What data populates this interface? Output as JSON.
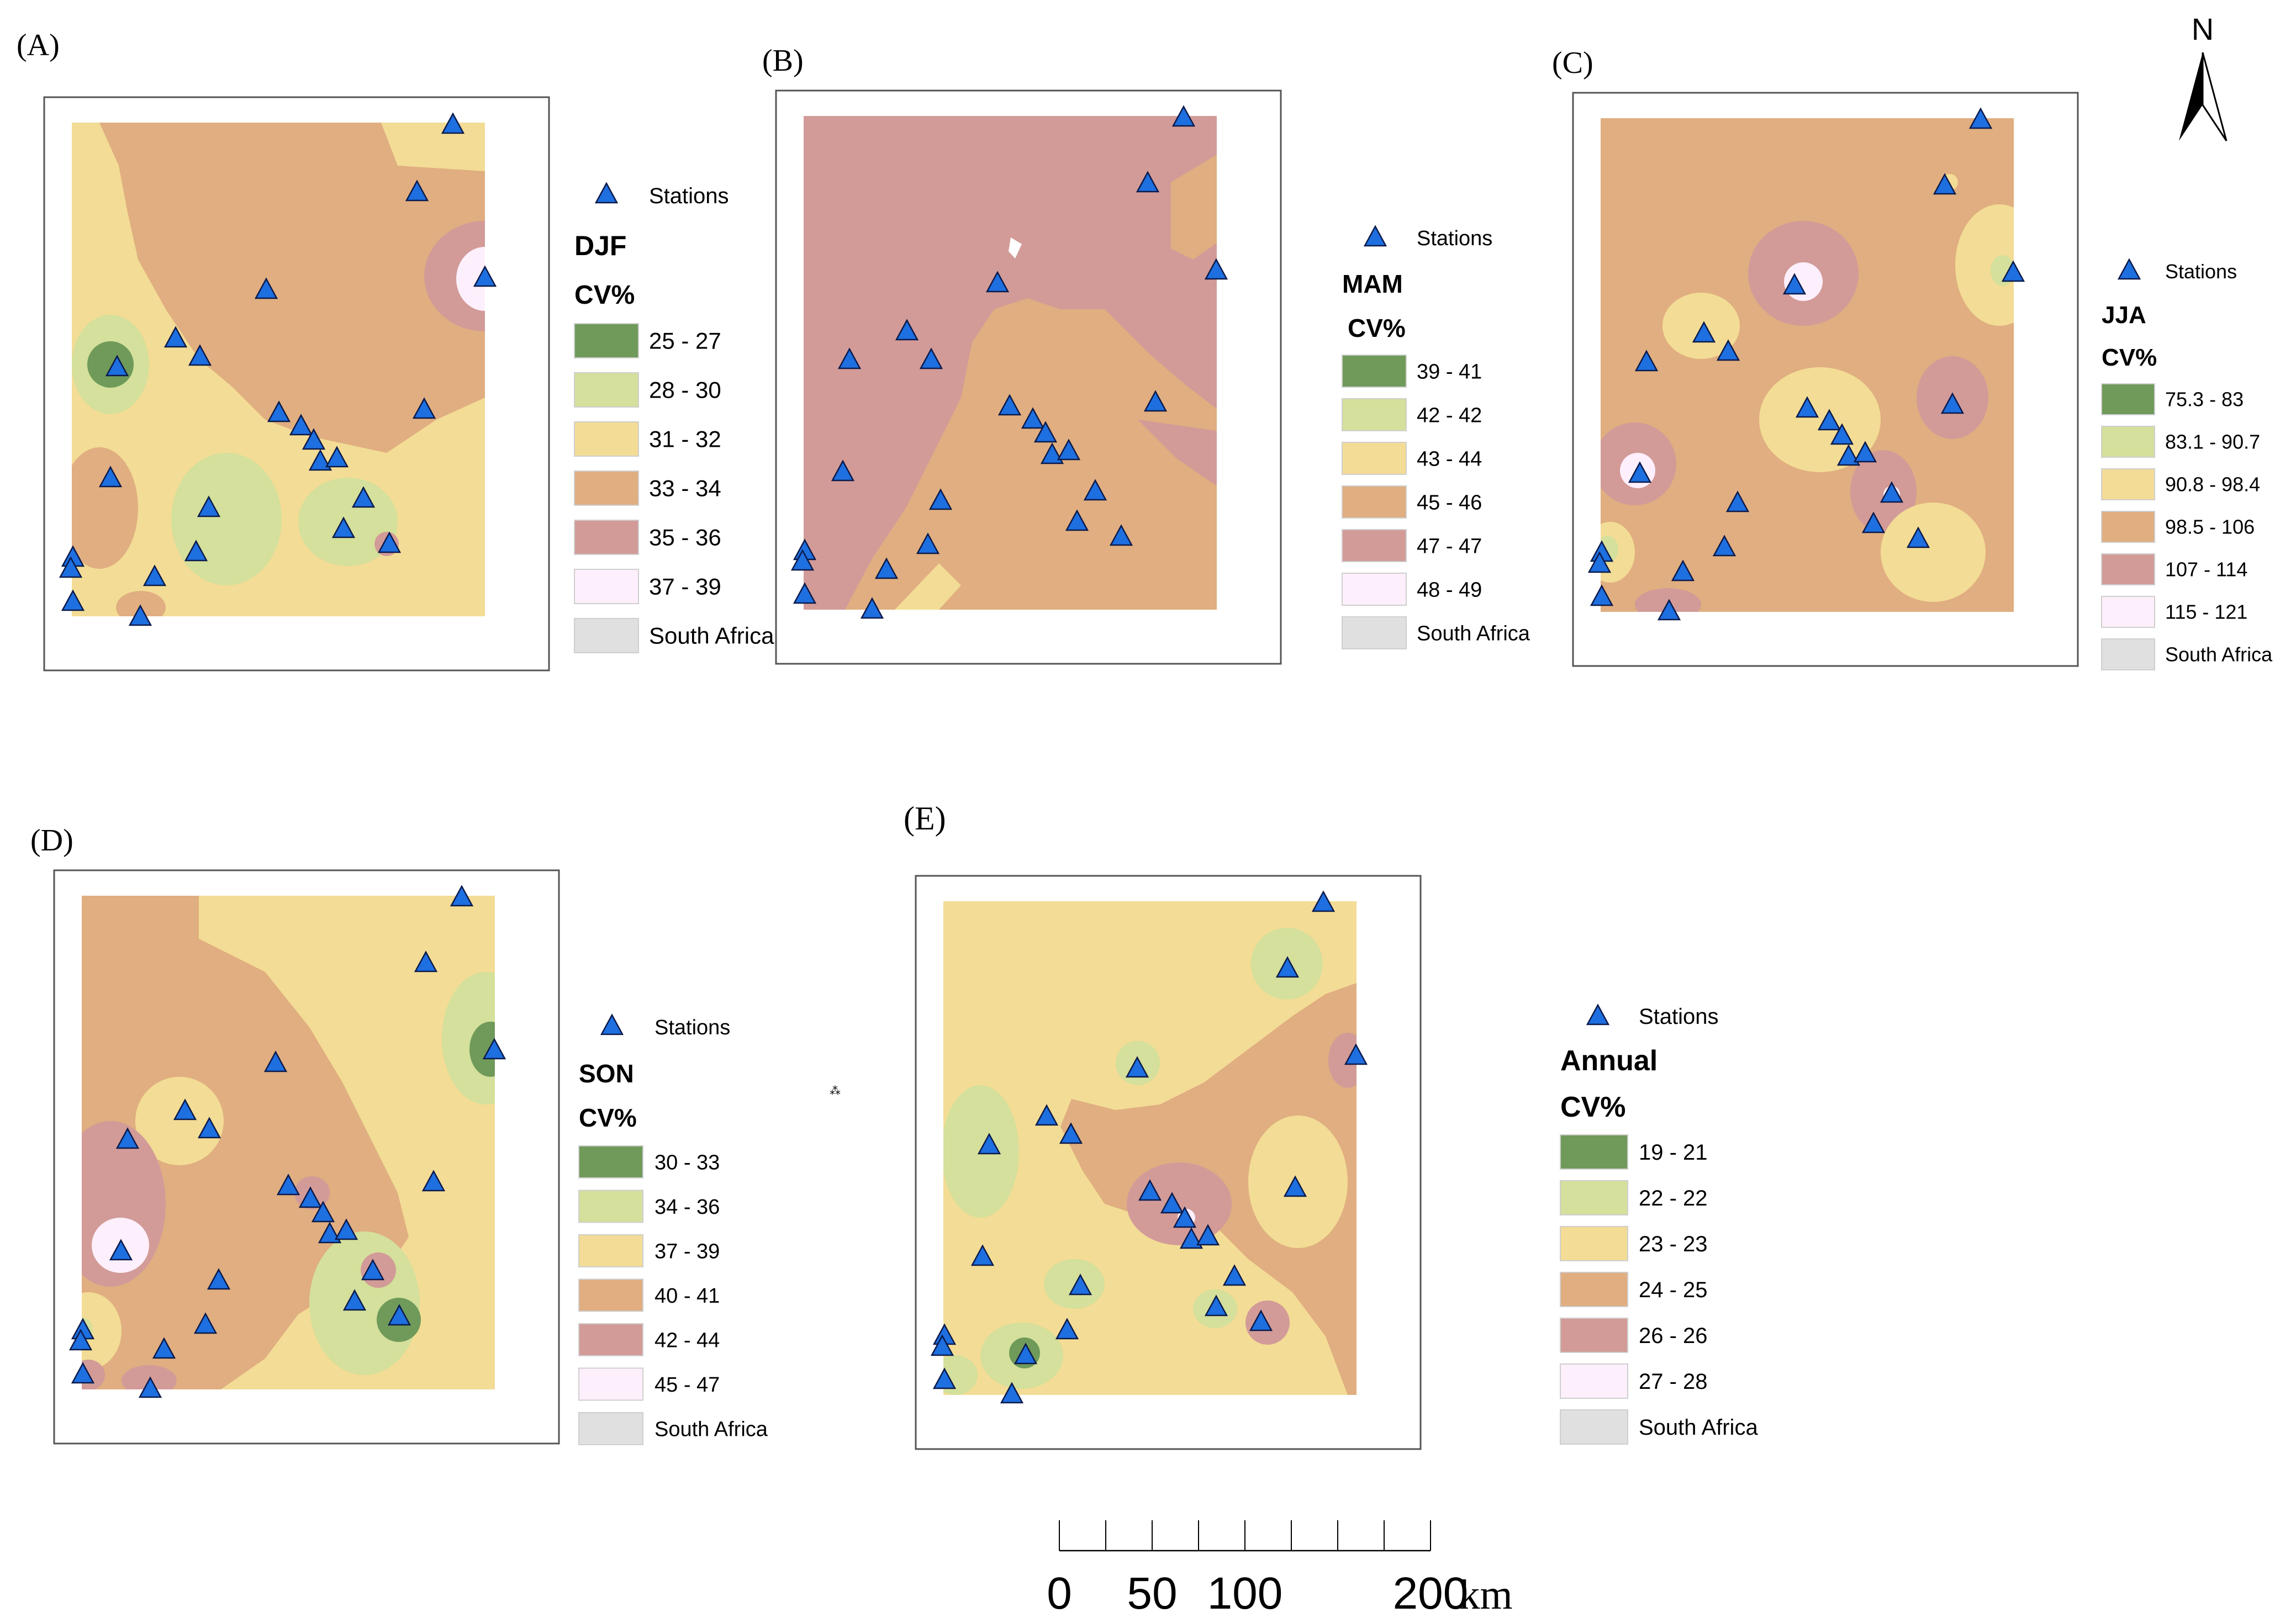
{
  "north_arrow": {
    "label": "N"
  },
  "scale_bar": {
    "ticks": [
      {
        "value": 0,
        "label": "0"
      },
      {
        "value": 50,
        "label": "50"
      },
      {
        "value": 100,
        "label": "100"
      },
      {
        "value": 200,
        "label": "200"
      }
    ],
    "unit": "km",
    "length_km": 200,
    "minor_divisions": 8
  },
  "colors": {
    "station": "#1e6fe0",
    "station_outline": "#0b1a4a",
    "class_1": "#6f9a5a",
    "class_2": "#d4e09b",
    "class_3": "#f3dc95",
    "class_4": "#e0ae80",
    "class_5": "#d29b98",
    "class_6": "#fdeffb",
    "south_africa": "#e0e0e0"
  },
  "panels": [
    {
      "id": "A",
      "label": "(A)",
      "season": "DJF",
      "legend_title": "CV%",
      "stations_label": "Stations",
      "south_africa_label": "South Africa",
      "classes": [
        "25 - 27",
        "28 - 30",
        "31 - 32",
        "33 - 34",
        "35 - 36",
        "37 - 39"
      ]
    },
    {
      "id": "B",
      "label": "(B)",
      "season": "MAM",
      "legend_title": "CV%",
      "stations_label": "Stations",
      "south_africa_label": "South Africa",
      "classes": [
        "39 - 41",
        "42 - 42",
        "43 - 44",
        "45 - 46",
        "47 - 47",
        "48 - 49"
      ]
    },
    {
      "id": "C",
      "label": "(C)",
      "season": "JJA",
      "legend_title": "CV%",
      "stations_label": "Stations",
      "south_africa_label": "South Africa",
      "classes": [
        "75.3 - 83",
        "83.1 - 90.7",
        "90.8 - 98.4",
        "98.5 - 106",
        "107 - 114",
        "115 - 121"
      ]
    },
    {
      "id": "D",
      "label": "(D)",
      "season": "SON",
      "legend_title": "CV%",
      "stations_label": "Stations",
      "south_africa_label": "South Africa",
      "classes": [
        "30 - 33",
        "34 - 36",
        "37 - 39",
        "40 - 41",
        "42 - 44",
        "45 - 47"
      ]
    },
    {
      "id": "E",
      "label": "(E)",
      "season": "Annual",
      "legend_title": "CV%",
      "stations_label": "Stations",
      "south_africa_label": "South Africa",
      "classes": [
        "19 - 21",
        "22 - 22",
        "23 - 23",
        "24 - 25",
        "26 - 26",
        "27 - 28"
      ]
    }
  ]
}
